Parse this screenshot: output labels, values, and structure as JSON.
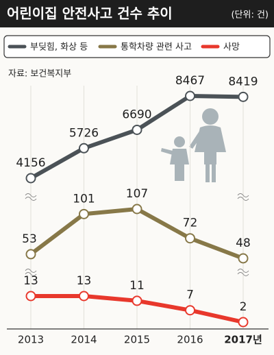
{
  "chart_data": {
    "type": "line",
    "title": "어린이집 안전사고 건수 추이",
    "subtitle": "(단위: 건)",
    "source": "자료: 보건복지부",
    "categories": [
      "2013",
      "2014",
      "2015",
      "2016",
      "2017년"
    ],
    "series": [
      {
        "name": "부딪힘, 화상 등",
        "color": "#4b5257",
        "values": [
          4156,
          5726,
          6690,
          8467,
          8419
        ]
      },
      {
        "name": "통학차량 관련 사고",
        "color": "#877848",
        "values": [
          53,
          101,
          107,
          72,
          48
        ]
      },
      {
        "name": "사망",
        "color": "#e8382c",
        "values": [
          13,
          13,
          11,
          7,
          2
        ]
      }
    ]
  }
}
